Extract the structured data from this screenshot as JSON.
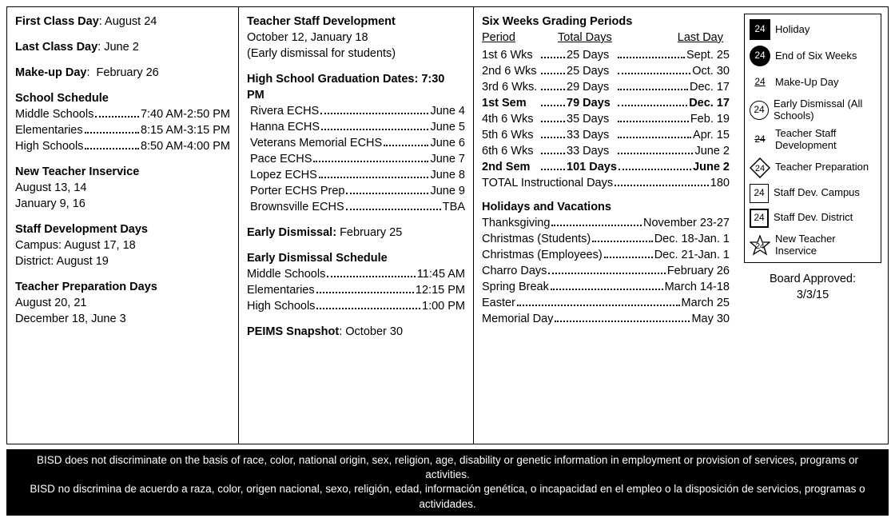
{
  "col1": {
    "first_class": {
      "label": "First Class Day",
      "value": "August 24"
    },
    "last_class": {
      "label": "Last Class Day",
      "value": "June 2"
    },
    "makeup": {
      "label": "Make-up Day",
      "value": "February 26"
    },
    "school_schedule": {
      "title": "School Schedule",
      "rows": [
        {
          "l": "Middle Schools",
          "r": "7:40 AM-2:50 PM"
        },
        {
          "l": "Elementaries",
          "r": "8:15 AM-3:15 PM"
        },
        {
          "l": "High Schools",
          "r": "8:50 AM-4:00 PM"
        }
      ]
    },
    "new_teacher": {
      "title": "New Teacher Inservice",
      "l1": "August 13, 14",
      "l2": "January 9, 16"
    },
    "staff_dev": {
      "title": "Staff Development Days",
      "l1": "Campus: August 17, 18",
      "l2": "District: August 19"
    },
    "teacher_prep": {
      "title": "Teacher Preparation Days",
      "l1": "August 20, 21",
      "l2": "December 18, June 3"
    }
  },
  "col2": {
    "tsd": {
      "title": "Teacher Staff Development",
      "l1": "October 12, January 18",
      "l2": "(Early dismissal for students)"
    },
    "grad": {
      "title": "High School Graduation Dates: 7:30 PM",
      "rows": [
        {
          "l": "Rivera ECHS",
          "r": "June 4"
        },
        {
          "l": "Hanna ECHS",
          "r": "June 5"
        },
        {
          "l": "Veterans Memorial ECHS",
          "r": "June 6"
        },
        {
          "l": "Pace ECHS",
          "r": "June 7"
        },
        {
          "l": "Lopez ECHS",
          "r": "June 8"
        },
        {
          "l": "Porter ECHS Prep",
          "r": "June 9"
        },
        {
          "l": "Brownsville ECHS",
          "r": "TBA"
        }
      ]
    },
    "early_dis": {
      "label": "Early Dismissal:",
      "value": "February 25"
    },
    "ed_sched": {
      "title": "Early Dismissal Schedule",
      "rows": [
        {
          "l": "Middle Schools",
          "r": "11:45 AM"
        },
        {
          "l": "Elementaries",
          "r": "12:15 PM"
        },
        {
          "l": "High Schools",
          "r": "1:00 PM"
        }
      ]
    },
    "peims": {
      "label": "PEIMS Snapshot",
      "value": "October 30"
    }
  },
  "col3": {
    "title": "Six Weeks Grading Periods",
    "head": {
      "c1": "Period",
      "c2": "Total Days",
      "c3": "Last Day"
    },
    "periods": [
      {
        "c1": "1st 6 Wks",
        "c2": "25 Days",
        "c3": "Sept. 25",
        "b": false
      },
      {
        "c1": "2nd 6 Wks",
        "c2": "25 Days",
        "c3": "Oct. 30",
        "b": false
      },
      {
        "c1": "3rd 6 Wks.",
        "c2": "29 Days",
        "c3": "Dec. 17",
        "b": false
      },
      {
        "c1": "1st Sem",
        "c2": "79 Days",
        "c3": "Dec. 17",
        "b": true
      },
      {
        "c1": "4th 6 Wks",
        "c2": "35 Days",
        "c3": "Feb. 19",
        "b": false
      },
      {
        "c1": "5th 6 Wks",
        "c2": "33 Days",
        "c3": "Apr. 15",
        "b": false
      },
      {
        "c1": "6th 6 Wks",
        "c2": "33 Days",
        "c3": "June 2",
        "b": false
      },
      {
        "c1": "2nd Sem",
        "c2": "101 Days",
        "c3": "June 2",
        "b": true
      }
    ],
    "total": {
      "l": "TOTAL Instructional Days",
      "r": "180"
    },
    "holidays": {
      "title": "Holidays and Vacations",
      "rows": [
        {
          "l": "Thanksgiving",
          "r": "November 23-27"
        },
        {
          "l": "Christmas (Students)",
          "r": "Dec. 18-Jan. 1"
        },
        {
          "l": "Christmas (Employees)",
          "r": "Dec. 21-Jan. 1"
        },
        {
          "l": "Charro Days",
          "r": "February 26"
        },
        {
          "l": "Spring Break",
          "r": "March 14-18"
        },
        {
          "l": "Easter",
          "r": "March 25"
        },
        {
          "l": "Memorial Day",
          "r": "May 30"
        }
      ]
    }
  },
  "legend": {
    "num": "24",
    "items": [
      {
        "sym": "black-sq",
        "txt": "Holiday"
      },
      {
        "sym": "black-circ",
        "txt": "End of Six Weeks"
      },
      {
        "sym": "underline",
        "txt": "Make-Up Day"
      },
      {
        "sym": "circ",
        "txt": "Early Dismissal (All Schools)"
      },
      {
        "sym": "strike",
        "txt": "Teacher Staff Development"
      },
      {
        "sym": "diamond",
        "txt": "Teacher Preparation"
      },
      {
        "sym": "sq-out",
        "txt": "Staff Dev. Campus"
      },
      {
        "sym": "sq-in",
        "txt": "Staff Dev. District"
      },
      {
        "sym": "star",
        "txt": "New Teacher Inservice"
      }
    ],
    "approved": {
      "l1": "Board Approved:",
      "l2": "3/3/15"
    }
  },
  "footer": {
    "en": "BISD does not discriminate on the basis of race, color, national origin, sex, religion, age, disability or genetic information in employment or provision of services, programs or activities.",
    "es": "BISD no discrimina de acuerdo a raza, color, origen nacional, sexo, religión, edad, información genética, o incapacidad en el empleo o la disposición de servicios, programas o actividades."
  }
}
